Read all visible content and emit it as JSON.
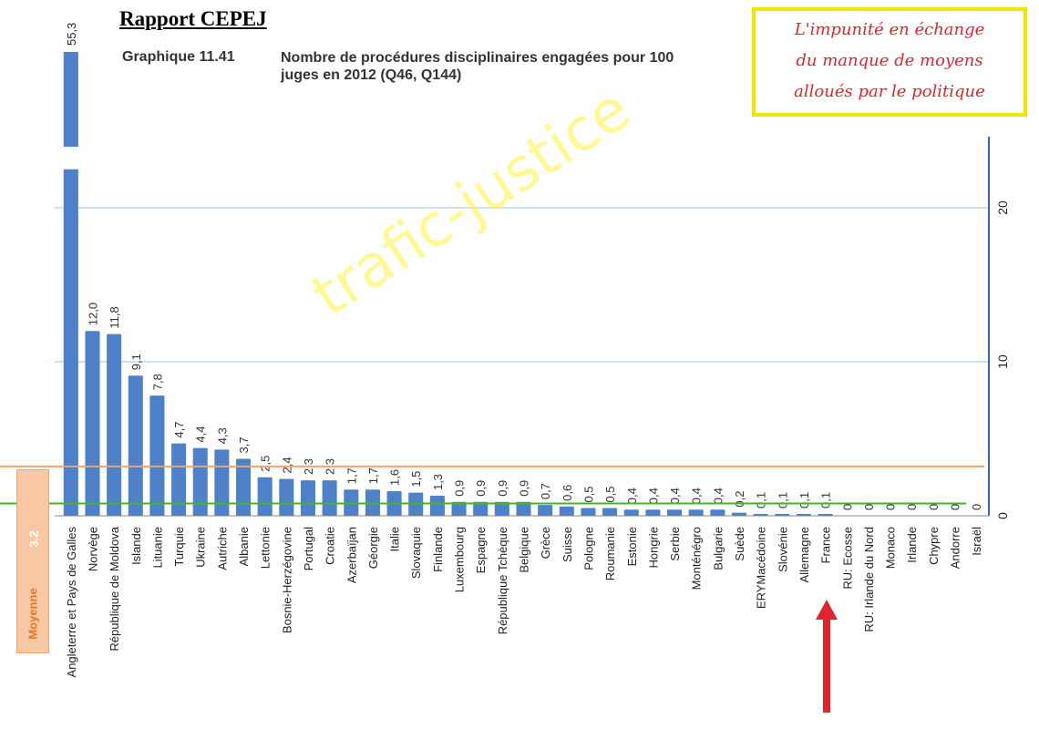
{
  "header": {
    "report_title": "Rapport CEPEJ",
    "graph_number": "Graphique 11.41",
    "graph_title": "Nombre de procédures disciplinaires engagées pour 100 juges en 2012 (Q46, Q144)"
  },
  "annotation": {
    "lines": [
      "L'impunité en échange",
      "du manque de moyens",
      "alloués par le politique"
    ],
    "watermark": "trafic-justice"
  },
  "average": {
    "label": "Moyenne",
    "value": "3.2",
    "numeric": 3.2
  },
  "colors": {
    "bar": "#4f81c9",
    "avg_line": "#f4a36a",
    "median_line": "#4ab12f",
    "arrow": "#e0242b",
    "grid": "#cfe0f3",
    "axis": "#3a62b0"
  },
  "chart_data": {
    "type": "bar",
    "title": "Nombre de procédures disciplinaires engagées pour 100 juges en 2012 (Q46, Q144)",
    "xlabel": "",
    "ylabel": "",
    "ylim": [
      0,
      24
    ],
    "y_ticks": [
      "0",
      "10",
      "20"
    ],
    "y_tick_values": [
      0,
      10,
      20
    ],
    "y_axis_side": "right",
    "grid": true,
    "broken_bar_index": 0,
    "average_line": 3.2,
    "second_reference_line": 0.8,
    "highlight_category": "France",
    "categories": [
      "Angleterre et Pays de Galles",
      "Norvège",
      "République de Moldova",
      "Islande",
      "Lituanie",
      "Turquie",
      "Ukraine",
      "Autriche",
      "Albanie",
      "Lettonie",
      "Bosnie-Herzégovine",
      "Portugal",
      "Croatie",
      "Azerbaïjan",
      "Géorgie",
      "Italie",
      "Slovaquie",
      "Finlande",
      "Luxembourg",
      "Espagne",
      "République Tchèque",
      "Belgique",
      "Grèce",
      "Suisse",
      "Pologne",
      "Roumanie",
      "Estonie",
      "Hongrie",
      "Serbie",
      "Monténégro",
      "Bulgarie",
      "Suède",
      "ERYMacédoine",
      "Slovénie",
      "Allemagne",
      "France",
      "RU: Ecosse",
      "RU: Irlande du Nord",
      "Monaco",
      "Irlande",
      "Chypre",
      "Andorre",
      "Israël"
    ],
    "values": [
      55.3,
      12.0,
      11.8,
      9.1,
      7.8,
      4.7,
      4.4,
      4.3,
      3.7,
      2.5,
      2.4,
      2.3,
      2.3,
      1.7,
      1.7,
      1.6,
      1.5,
      1.3,
      0.9,
      0.9,
      0.9,
      0.9,
      0.7,
      0.6,
      0.5,
      0.5,
      0.4,
      0.4,
      0.4,
      0.4,
      0.4,
      0.2,
      0.1,
      0.1,
      0.1,
      0.1,
      0,
      0,
      0,
      0,
      0,
      0,
      0
    ],
    "value_labels": [
      "55,3",
      "12,0",
      "11,8",
      "9,1",
      "7,8",
      "4,7",
      "4,4",
      "4,3",
      "3,7",
      "2,5",
      "2,4",
      "2,3",
      "2,3",
      "1,7",
      "1,7",
      "1,6",
      "1,5",
      "1,3",
      "0,9",
      "0,9",
      "0,9",
      "0,9",
      "0,7",
      "0,6",
      "0,5",
      "0,5",
      "0,4",
      "0,4",
      "0,4",
      "0,4",
      "0,4",
      "0,2",
      "0,1",
      "0,1",
      "0,1",
      "0,1",
      "0",
      "0",
      "0",
      "0",
      "0",
      "0",
      "0"
    ]
  }
}
